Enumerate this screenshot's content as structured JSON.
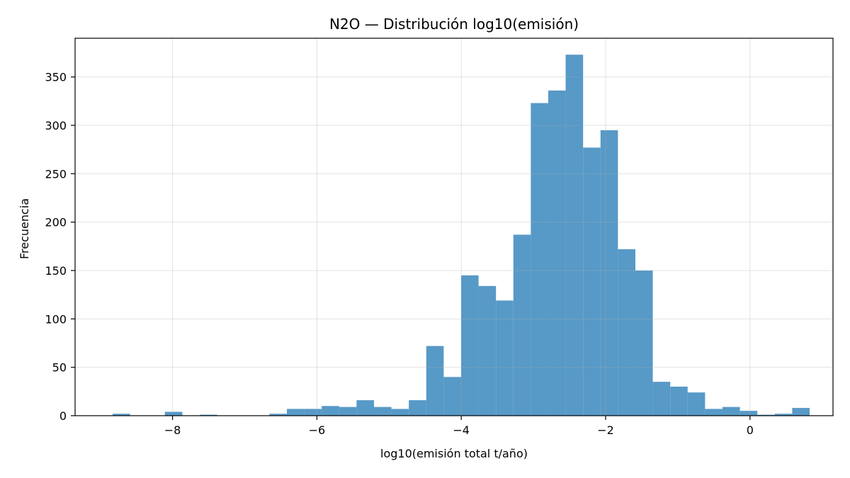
{
  "chart_data": {
    "type": "bar",
    "title": "N2O — Distribución log10(emisión)",
    "xlabel": "log10(emisión total t/año)",
    "ylabel": "Frecuencia",
    "xlim": [
      -9.35,
      1.15
    ],
    "ylim": [
      0,
      390
    ],
    "grid": true,
    "bar_color": "#5799c7",
    "bin_width": 0.2414,
    "bin_start": -8.83,
    "values": [
      2,
      0,
      0,
      4,
      0,
      1,
      0,
      0,
      0,
      2,
      7,
      7,
      10,
      9,
      16,
      9,
      7,
      16,
      72,
      40,
      145,
      134,
      119,
      187,
      323,
      336,
      373,
      277,
      295,
      172,
      150,
      35,
      30,
      24,
      7,
      9,
      5,
      1,
      2,
      8
    ],
    "x_ticks": [
      -8,
      -6,
      -4,
      -2,
      0
    ],
    "x_tick_labels": [
      "−8",
      "−6",
      "−4",
      "−2",
      "0"
    ],
    "y_ticks": [
      0,
      50,
      100,
      150,
      200,
      250,
      300,
      350
    ],
    "y_tick_labels": [
      "0",
      "50",
      "100",
      "150",
      "200",
      "250",
      "300",
      "350"
    ]
  }
}
